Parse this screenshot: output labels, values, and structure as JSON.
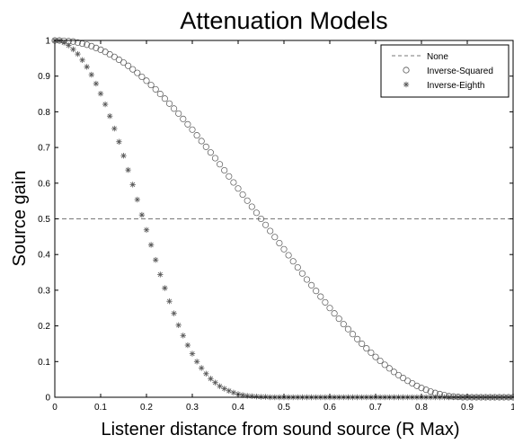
{
  "chart_data": {
    "type": "scatter",
    "title": "Attenuation Models",
    "xlabel": "Listener distance from sound source (R Max)",
    "ylabel": "Source gain",
    "xlim": [
      0,
      1
    ],
    "ylim": [
      0,
      1
    ],
    "xticks": [
      0,
      0.1,
      0.2,
      0.3,
      0.4,
      0.5,
      0.6,
      0.7,
      0.8,
      0.9,
      1
    ],
    "xtick_labels": [
      "0",
      "0.1",
      "0.2",
      "0.3",
      "0.4",
      "0.5",
      "0.6",
      "0.7",
      "0.8",
      "0.9",
      "1"
    ],
    "yticks": [
      0,
      0.1,
      0.2,
      0.3,
      0.4,
      0.5,
      0.6,
      0.7,
      0.8,
      0.9,
      1
    ],
    "ytick_labels": [
      "0",
      "0.1",
      "0.2",
      "0.3",
      "0.4",
      "0.5",
      "0.6",
      "0.7",
      "0.8",
      "0.9",
      "1"
    ],
    "grid": false,
    "legend_position": "top-right",
    "series": [
      {
        "name": "None",
        "marker": "dashed-line",
        "color": "#777777",
        "x": [
          0,
          1
        ],
        "y": [
          0.5,
          0.5
        ]
      },
      {
        "name": "Inverse-Squared",
        "marker": "circle",
        "color": "#555555",
        "x": [
          0,
          0.01,
          0.02,
          0.03,
          0.04,
          0.05,
          0.06,
          0.07,
          0.08,
          0.09,
          0.1,
          0.11,
          0.12,
          0.13,
          0.14,
          0.15,
          0.16,
          0.17,
          0.18,
          0.19,
          0.2,
          0.21,
          0.22,
          0.23,
          0.24,
          0.25,
          0.26,
          0.27,
          0.28,
          0.29,
          0.3,
          0.31,
          0.32,
          0.33,
          0.34,
          0.35,
          0.36,
          0.37,
          0.38,
          0.39,
          0.4,
          0.41,
          0.42,
          0.43,
          0.44,
          0.45,
          0.46,
          0.47,
          0.48,
          0.49,
          0.5,
          0.51,
          0.52,
          0.53,
          0.54,
          0.55,
          0.56,
          0.57,
          0.58,
          0.59,
          0.6,
          0.61,
          0.62,
          0.63,
          0.64,
          0.65,
          0.66,
          0.67,
          0.68,
          0.69,
          0.7,
          0.71,
          0.72,
          0.73,
          0.74,
          0.75,
          0.76,
          0.77,
          0.78,
          0.79,
          0.8,
          0.81,
          0.82,
          0.83,
          0.84,
          0.85,
          0.86,
          0.87,
          0.88,
          0.89,
          0.9,
          0.91,
          0.92,
          0.93,
          0.94,
          0.95,
          0.96,
          0.97,
          0.98,
          0.99,
          1
        ],
        "y": [
          1,
          1,
          0.999,
          0.998,
          0.997,
          0.994,
          0.991,
          0.988,
          0.984,
          0.979,
          0.974,
          0.968,
          0.961,
          0.954,
          0.946,
          0.938,
          0.929,
          0.919,
          0.909,
          0.898,
          0.887,
          0.875,
          0.863,
          0.85,
          0.837,
          0.823,
          0.809,
          0.795,
          0.78,
          0.765,
          0.75,
          0.734,
          0.718,
          0.702,
          0.686,
          0.67,
          0.653,
          0.636,
          0.619,
          0.602,
          0.585,
          0.568,
          0.551,
          0.534,
          0.517,
          0.5,
          0.483,
          0.466,
          0.449,
          0.432,
          0.415,
          0.398,
          0.381,
          0.364,
          0.347,
          0.33,
          0.314,
          0.298,
          0.282,
          0.266,
          0.25,
          0.235,
          0.22,
          0.205,
          0.191,
          0.177,
          0.163,
          0.15,
          0.137,
          0.125,
          0.113,
          0.102,
          0.091,
          0.081,
          0.071,
          0.062,
          0.054,
          0.046,
          0.039,
          0.032,
          0.026,
          0.021,
          0.016,
          0.012,
          0.009,
          0.006,
          0.003,
          0.002,
          0.001,
          0,
          0,
          0,
          0,
          0,
          0,
          0,
          0,
          0,
          0,
          0,
          0
        ]
      },
      {
        "name": "Inverse-Eighth",
        "marker": "asterisk",
        "color": "#555555",
        "x": [
          0,
          0.01,
          0.02,
          0.03,
          0.04,
          0.05,
          0.06,
          0.07,
          0.08,
          0.09,
          0.1,
          0.11,
          0.12,
          0.13,
          0.14,
          0.15,
          0.16,
          0.17,
          0.18,
          0.19,
          0.2,
          0.21,
          0.22,
          0.23,
          0.24,
          0.25,
          0.26,
          0.27,
          0.28,
          0.29,
          0.3,
          0.31,
          0.32,
          0.33,
          0.34,
          0.35,
          0.36,
          0.37,
          0.38,
          0.39,
          0.4,
          0.41,
          0.42,
          0.43,
          0.44,
          0.45,
          0.46,
          0.47,
          0.48,
          0.49,
          0.5,
          0.51,
          0.52,
          0.53,
          0.54,
          0.55,
          0.56,
          0.57,
          0.58,
          0.59,
          0.6,
          0.61,
          0.62,
          0.63,
          0.64,
          0.65,
          0.66,
          0.67,
          0.68,
          0.69,
          0.7,
          0.71,
          0.72,
          0.73,
          0.74,
          0.75,
          0.76,
          0.77,
          0.78,
          0.79,
          0.8,
          0.81,
          0.82,
          0.83,
          0.84,
          0.85,
          0.86,
          0.87,
          0.88,
          0.89,
          0.9,
          0.91,
          0.92,
          0.93,
          0.94,
          0.95,
          0.96,
          0.97,
          0.98,
          0.99,
          1
        ],
        "y": [
          1,
          0.999,
          0.994,
          0.986,
          0.975,
          0.962,
          0.945,
          0.926,
          0.904,
          0.879,
          0.851,
          0.821,
          0.788,
          0.753,
          0.716,
          0.677,
          0.637,
          0.596,
          0.554,
          0.511,
          0.469,
          0.427,
          0.385,
          0.344,
          0.306,
          0.269,
          0.235,
          0.202,
          0.173,
          0.146,
          0.122,
          0.1,
          0.082,
          0.066,
          0.052,
          0.041,
          0.031,
          0.024,
          0.018,
          0.013,
          0.009,
          0.006,
          0.004,
          0.003,
          0.002,
          0.001,
          0.001,
          0,
          0,
          0,
          0,
          0,
          0,
          0,
          0,
          0,
          0,
          0,
          0,
          0,
          0,
          0,
          0,
          0,
          0,
          0,
          0,
          0,
          0,
          0,
          0,
          0,
          0,
          0,
          0,
          0,
          0,
          0,
          0,
          0,
          0,
          0,
          0,
          0,
          0,
          0,
          0,
          0,
          0,
          0,
          0,
          0,
          0,
          0,
          0,
          0,
          0,
          0,
          0,
          0,
          0
        ]
      }
    ]
  }
}
